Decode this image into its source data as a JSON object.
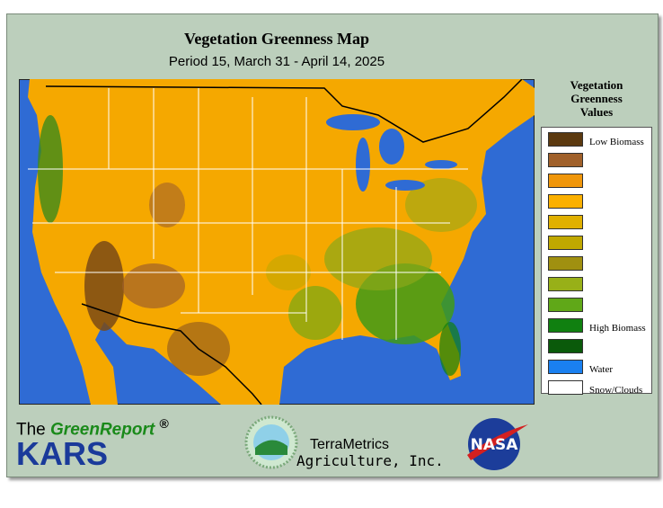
{
  "header": {
    "title": "Vegetation Greenness Map",
    "subtitle": "Period 15, March 31 - April 14, 2025"
  },
  "legend": {
    "title_lines": [
      "Vegetation",
      "Greenness",
      "Values"
    ],
    "items": [
      {
        "color": "#5c3a10",
        "label": "Low Biomass"
      },
      {
        "color": "#a0602a"
      },
      {
        "color": "#f0960a"
      },
      {
        "color": "#fbb000"
      },
      {
        "color": "#e0b000"
      },
      {
        "color": "#c0a800"
      },
      {
        "color": "#a09010"
      },
      {
        "color": "#98b018"
      },
      {
        "color": "#60a818"
      },
      {
        "color": "#108010",
        "label": "High Biomass"
      },
      {
        "color": "#0a5a0a"
      },
      {
        "color": "#1a80f0",
        "label": "Water"
      },
      {
        "color": "#ffffff",
        "label": "Snow/Clouds"
      }
    ]
  },
  "footer": {
    "brand_prefix": "The",
    "brand_name": "GreenReport",
    "registered": "®",
    "org": "KARS",
    "partner_line1": "TerraMetrics",
    "partner_line2": "Agriculture, Inc.",
    "agency": "NASA"
  }
}
